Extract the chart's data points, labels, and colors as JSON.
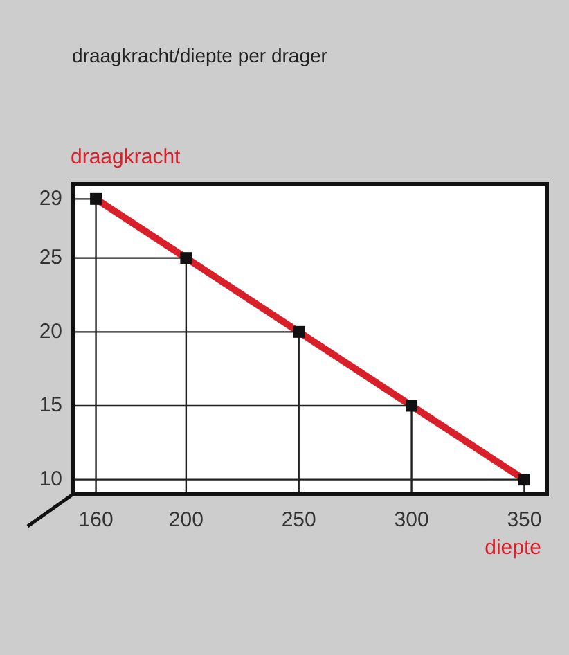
{
  "chart_data": {
    "type": "line",
    "title": "draagkracht/diepte per drager",
    "xlabel": "diepte",
    "ylabel": "draagkracht",
    "x": [
      160,
      200,
      250,
      300,
      350
    ],
    "series": [
      {
        "color": "#222222",
        "marker": "none",
        "x": [
          150,
          160,
          160
        ],
        "values": [
          29,
          29,
          9
        ]
      },
      {
        "color": "#222222",
        "marker": "none",
        "x": [
          150,
          200,
          200
        ],
        "values": [
          25,
          25,
          9
        ]
      },
      {
        "color": "#222222",
        "marker": "none",
        "x": [
          150,
          250,
          250
        ],
        "values": [
          20,
          20,
          9
        ]
      },
      {
        "color": "#222222",
        "marker": "none",
        "x": [
          150,
          300,
          300
        ],
        "values": [
          15,
          15,
          9
        ]
      },
      {
        "color": "#222222",
        "marker": "none",
        "x": [
          150,
          350,
          350
        ],
        "values": [
          10,
          10,
          9
        ]
      },
      {
        "color": "#d9202a",
        "marker": "none",
        "values": [
          29,
          25,
          20,
          15,
          10
        ]
      },
      {
        "type": "scatter",
        "color": "#111111",
        "marker": "square",
        "values": [
          29,
          25,
          20,
          15,
          10
        ]
      }
    ],
    "xlim": [
      150,
      360
    ],
    "xticks": [
      160,
      200,
      250,
      300,
      350
    ],
    "ylim": [
      9,
      30
    ],
    "yticks": [
      10,
      15,
      20,
      25,
      29
    ],
    "grid": false,
    "legend": false,
    "line_style": "solid"
  }
}
